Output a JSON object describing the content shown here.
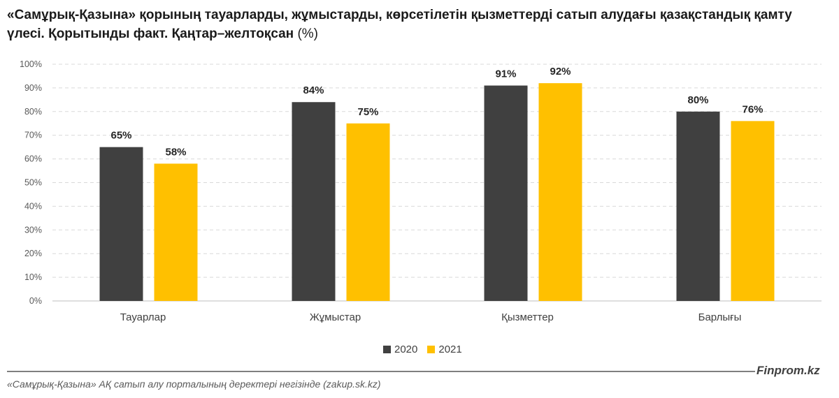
{
  "title": {
    "bold": "«Самұрық-Қазына» қорының тауарларды, жұмыстарды, көрсетілетін қызметтерді сатып алудағы қазақстандық қамту үлесі. Қорытынды факт. Қаңтар–желтоқсан",
    "unit": "(%)"
  },
  "chart_data": {
    "type": "bar",
    "categories": [
      "Тауарлар",
      "Жұмыстар",
      "Қызметтер",
      "Барлығы"
    ],
    "series": [
      {
        "name": "2020",
        "values": [
          65,
          84,
          91,
          80
        ],
        "labels": [
          "65%",
          "84%",
          "91%",
          "80%"
        ],
        "color": "#404040"
      },
      {
        "name": "2021",
        "values": [
          58,
          75,
          92,
          76
        ],
        "labels": [
          "58%",
          "75%",
          "92%",
          "76%"
        ],
        "color": "#FFC000"
      }
    ],
    "ylim": [
      0,
      100
    ],
    "yticks": [
      0,
      10,
      20,
      30,
      40,
      50,
      60,
      70,
      80,
      90,
      100
    ],
    "ytick_labels": [
      "0%",
      "10%",
      "20%",
      "30%",
      "40%",
      "50%",
      "60%",
      "70%",
      "80%",
      "90%",
      "100%"
    ],
    "grid": true,
    "legend": "bottom"
  },
  "brand": "Finprom.kz",
  "source": "«Самұрық-Қазына» АҚ сатып алу порталының деректері негізінде (zakup.sk.kz)"
}
